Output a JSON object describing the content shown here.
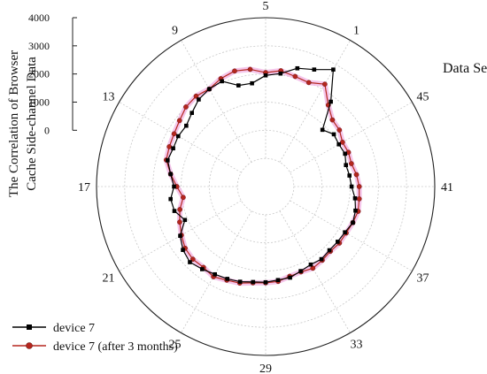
{
  "chart_data": {
    "type": "polar-line",
    "ylabel_lines": [
      "The Correlation of Browser",
      "Cache Side-channel Data"
    ],
    "angular_axis_label": "Data Sets",
    "angular_ticks": [
      1,
      5,
      9,
      13,
      17,
      21,
      25,
      29,
      33,
      37,
      41,
      45
    ],
    "n_points": 48,
    "radial_ticks": [
      0,
      1000,
      2000,
      3000,
      4000
    ],
    "radial_range": [
      -2000,
      4000
    ],
    "grid": true,
    "legend_position": "bottom-left",
    "series": [
      {
        "name": "device 7",
        "color": "#000000",
        "marker": "square",
        "values": [
          2800,
          2500,
          2350,
          2050,
          1950,
          1700,
          1720,
          2050,
          2000,
          1900,
          1700,
          1550,
          1580,
          1550,
          1600,
          1400,
          1250,
          1400,
          1350,
          1100,
          1500,
          1700,
          1800,
          1700,
          1600,
          1550,
          1500,
          1420,
          1400,
          1350,
          1350,
          1250,
          1200,
          1250,
          1200,
          1220,
          1250,
          1350,
          1300,
          1200,
          1050,
          1000,
          950,
          1050,
          1000,
          1050,
          850,
          1800
        ]
      },
      {
        "name": "device 7 (after 3 months)",
        "color": "#b5261e",
        "marker": "circle",
        "values": [
          2200,
          2000,
          2050,
          2150,
          2050,
          2200,
          2250,
          2150,
          2000,
          2050,
          2000,
          1850,
          1750,
          1700,
          1650,
          1400,
          1150,
          950,
          1150,
          1300,
          1450,
          1600,
          1650,
          1620,
          1700,
          1600,
          1550,
          1450,
          1420,
          1400,
          1300,
          1280,
          1350,
          1300,
          1250,
          1300,
          1300,
          1350,
          1400,
          1350,
          1320,
          1250,
          1150,
          1180,
          1150,
          1300,
          1350,
          1650
        ]
      }
    ]
  }
}
